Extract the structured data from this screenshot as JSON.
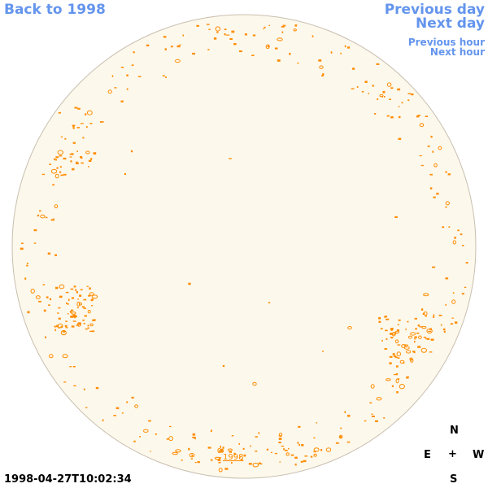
{
  "nav": {
    "back_label": "Back to 1998",
    "previous_day_label": "Previous day",
    "next_day_label": "Next day",
    "previous_hour_label": "Previous hour",
    "next_hour_label": "Next hour"
  },
  "timestamp": "1998-04-27T10:02:34",
  "year_link": "1998",
  "compass": {
    "north": "N",
    "east": "E",
    "center": "+",
    "west": "W",
    "south": "S"
  },
  "colors": {
    "link": "#6495ed",
    "disk_fill": "#fdf8ec",
    "disk_border": "#c8bfb0",
    "contour": "#ff8c00"
  }
}
